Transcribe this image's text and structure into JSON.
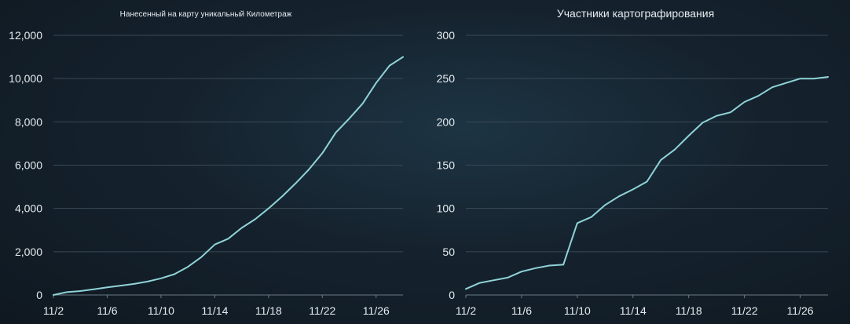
{
  "theme": {
    "line_color": "#8fd3d8",
    "text_color": "#e6ecef",
    "grid_color": "#3a4a56"
  },
  "chart_data": [
    {
      "type": "line",
      "title": "Нанесенный на карту уникальный Километраж",
      "xlabel": "",
      "ylabel": "",
      "ylim": [
        0,
        12000
      ],
      "yticks": [
        "0",
        "2,000",
        "4,000",
        "6,000",
        "8,000",
        "10,000",
        "12,000"
      ],
      "ytick_values": [
        0,
        2000,
        4000,
        6000,
        8000,
        10000,
        12000
      ],
      "xticks": [
        "11/2",
        "11/6",
        "11/10",
        "11/14",
        "11/18",
        "11/22",
        "11/26"
      ],
      "x": [
        "11/2",
        "11/3",
        "11/4",
        "11/5",
        "11/6",
        "11/7",
        "11/8",
        "11/9",
        "11/10",
        "11/11",
        "11/12",
        "11/13",
        "11/14",
        "11/15",
        "11/16",
        "11/17",
        "11/18",
        "11/19",
        "11/20",
        "11/21",
        "11/22",
        "11/23",
        "11/24",
        "11/25",
        "11/26",
        "11/27",
        "11/28"
      ],
      "series": [
        {
          "values": [
            0,
            130,
            180,
            260,
            350,
            430,
            510,
            620,
            770,
            960,
            1300,
            1750,
            2330,
            2600,
            3100,
            3500,
            4000,
            4550,
            5150,
            5800,
            6550,
            7500,
            8150,
            8850,
            9800,
            10600,
            11000
          ]
        }
      ],
      "grid": true
    },
    {
      "type": "line",
      "title": "Участники картографирования",
      "xlabel": "",
      "ylabel": "",
      "ylim": [
        0,
        300
      ],
      "yticks": [
        "0",
        "50",
        "100",
        "150",
        "200",
        "250",
        "300"
      ],
      "ytick_values": [
        0,
        50,
        100,
        150,
        200,
        250,
        300
      ],
      "xticks": [
        "11/2",
        "11/6",
        "11/10",
        "11/14",
        "11/18",
        "11/22",
        "11/26"
      ],
      "x": [
        "11/2",
        "11/3",
        "11/4",
        "11/5",
        "11/6",
        "11/7",
        "11/8",
        "11/9",
        "11/10",
        "11/11",
        "11/12",
        "11/13",
        "11/14",
        "11/15",
        "11/16",
        "11/17",
        "11/18",
        "11/19",
        "11/20",
        "11/21",
        "11/22",
        "11/23",
        "11/24",
        "11/25",
        "11/26",
        "11/27",
        "11/28"
      ],
      "series": [
        {
          "values": [
            7,
            14,
            17,
            20,
            27,
            31,
            34,
            35,
            83,
            90,
            104,
            114,
            122,
            131,
            156,
            168,
            184,
            199,
            207,
            211,
            223,
            230,
            240,
            245,
            250,
            250,
            252
          ]
        }
      ],
      "grid": true
    }
  ]
}
